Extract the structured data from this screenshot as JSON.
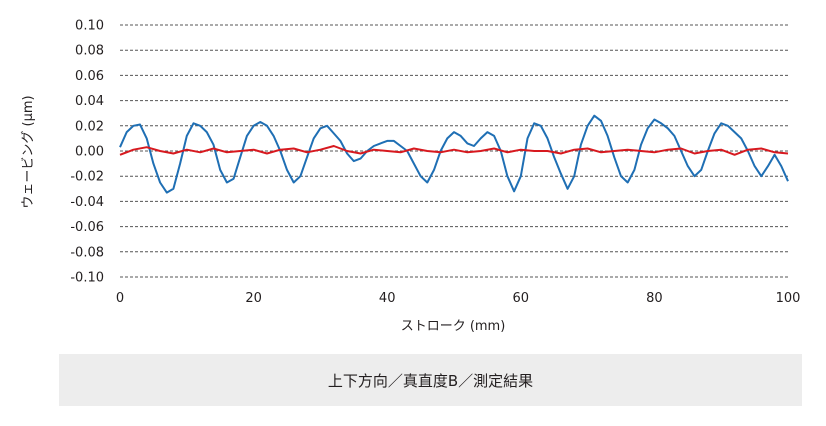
{
  "chart_data": {
    "type": "line",
    "xlabel": "ストローク (mm)",
    "ylabel": "ウェービング (μm)",
    "xlim": [
      0,
      100
    ],
    "ylim": [
      -0.1,
      0.1
    ],
    "xticks": [
      "0",
      "20",
      "40",
      "60",
      "80",
      "100"
    ],
    "yticks": [
      "0.10",
      "0.08",
      "0.06",
      "0.04",
      "0.02",
      "0.00",
      "-0.02",
      "-0.04",
      "-0.06",
      "-0.08",
      "-0.10"
    ],
    "grid": true,
    "series": [
      {
        "color": "#1f6fb4",
        "x": [
          0,
          1,
          2,
          3,
          4,
          5,
          6,
          7,
          8,
          9,
          10,
          11,
          12,
          13,
          14,
          15,
          16,
          17,
          18,
          19,
          20,
          21,
          22,
          23,
          24,
          25,
          26,
          27,
          28,
          29,
          30,
          31,
          32,
          33,
          34,
          35,
          36,
          37,
          38,
          39,
          40,
          41,
          42,
          43,
          44,
          45,
          46,
          47,
          48,
          49,
          50,
          51,
          52,
          53,
          54,
          55,
          56,
          57,
          58,
          59,
          60,
          61,
          62,
          63,
          64,
          65,
          66,
          67,
          68,
          69,
          70,
          71,
          72,
          73,
          74,
          75,
          76,
          77,
          78,
          79,
          80,
          81,
          82,
          83,
          84,
          85,
          86,
          87,
          88,
          89,
          90,
          91,
          92,
          93,
          94,
          95,
          96,
          97,
          98,
          99,
          100
        ],
        "values": [
          0.003,
          0.015,
          0.02,
          0.021,
          0.01,
          -0.01,
          -0.025,
          -0.033,
          -0.03,
          -0.01,
          0.012,
          0.022,
          0.02,
          0.015,
          0.005,
          -0.015,
          -0.025,
          -0.022,
          -0.005,
          0.012,
          0.02,
          0.023,
          0.02,
          0.012,
          0.0,
          -0.015,
          -0.025,
          -0.02,
          -0.005,
          0.01,
          0.018,
          0.02,
          0.014,
          0.008,
          -0.002,
          -0.008,
          -0.006,
          0.0,
          0.004,
          0.006,
          0.008,
          0.008,
          0.004,
          0.0,
          -0.01,
          -0.02,
          -0.025,
          -0.015,
          0.0,
          0.01,
          0.015,
          0.012,
          0.006,
          0.004,
          0.01,
          0.015,
          0.012,
          0.0,
          -0.02,
          -0.032,
          -0.02,
          0.01,
          0.022,
          0.02,
          0.01,
          -0.005,
          -0.018,
          -0.03,
          -0.02,
          0.005,
          0.02,
          0.028,
          0.024,
          0.012,
          -0.005,
          -0.02,
          -0.025,
          -0.015,
          0.005,
          0.018,
          0.025,
          0.022,
          0.018,
          0.012,
          0.0,
          -0.012,
          -0.02,
          -0.015,
          0.0,
          0.014,
          0.022,
          0.02,
          0.015,
          0.01,
          0.0,
          -0.012,
          -0.02,
          -0.012,
          -0.003,
          -0.012,
          -0.024
        ]
      },
      {
        "color": "#d7191f",
        "x": [
          0,
          2,
          4,
          6,
          8,
          10,
          12,
          14,
          16,
          18,
          20,
          22,
          24,
          26,
          28,
          30,
          32,
          34,
          36,
          38,
          40,
          42,
          44,
          46,
          48,
          50,
          52,
          54,
          56,
          58,
          60,
          62,
          64,
          66,
          68,
          70,
          72,
          74,
          76,
          78,
          80,
          82,
          84,
          86,
          88,
          90,
          92,
          94,
          96,
          98,
          100
        ],
        "values": [
          -0.003,
          0.001,
          0.003,
          0.0,
          -0.002,
          0.001,
          -0.001,
          0.002,
          -0.001,
          0.0,
          0.001,
          -0.002,
          0.001,
          0.002,
          -0.001,
          0.001,
          0.004,
          0.0,
          -0.002,
          0.001,
          0.0,
          -0.001,
          0.002,
          0.0,
          -0.001,
          0.001,
          -0.001,
          0.0,
          0.002,
          -0.001,
          0.001,
          0.0,
          0.0,
          -0.002,
          0.001,
          0.002,
          -0.001,
          0.0,
          0.001,
          0.0,
          -0.001,
          0.001,
          0.002,
          -0.002,
          0.0,
          0.001,
          -0.003,
          0.001,
          0.002,
          -0.001,
          -0.002
        ]
      }
    ]
  },
  "caption": "上下方向／真直度B／測定結果"
}
